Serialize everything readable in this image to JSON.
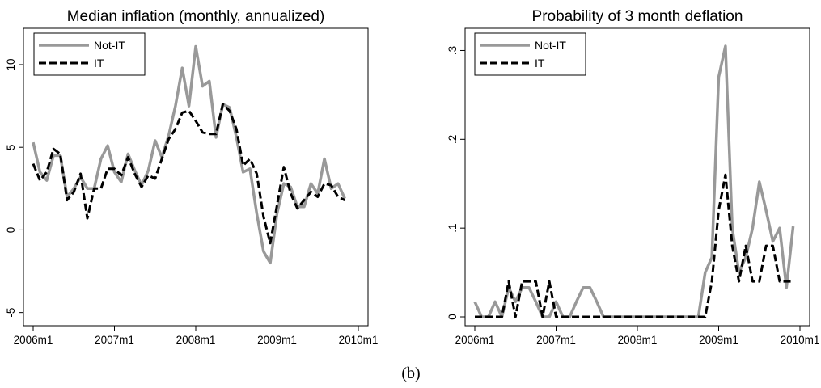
{
  "figure_label": "(b)",
  "chart_data": [
    {
      "type": "line",
      "title": "Median inflation (monthly, annualized)",
      "xlabel": "",
      "ylabel": "",
      "x_tick_labels": [
        "2006m1",
        "2007m1",
        "2008m1",
        "2009m1",
        "2010m1"
      ],
      "y_ticks": [
        -5,
        0,
        5,
        10
      ],
      "y_tick_labels": [
        "-5",
        "0",
        "5",
        "10"
      ],
      "xlim": [
        0,
        48
      ],
      "ylim": [
        -5.8,
        12.2
      ],
      "legend_position": "top-left",
      "grid": false,
      "series": [
        {
          "name": "Not-IT",
          "color": "#999999",
          "style": "solid",
          "values": [
            5.3,
            3.5,
            3.0,
            4.5,
            4.5,
            2.0,
            2.5,
            3.2,
            2.5,
            2.5,
            4.3,
            5.1,
            3.5,
            2.9,
            4.6,
            3.6,
            2.7,
            3.6,
            5.4,
            4.4,
            5.7,
            7.5,
            9.8,
            7.5,
            11.1,
            8.7,
            9.0,
            5.6,
            7.6,
            7.4,
            5.6,
            3.5,
            3.7,
            1.0,
            -1.3,
            -2.0,
            1.0,
            2.8,
            2.6,
            1.4,
            1.4,
            2.8,
            2.2,
            4.3,
            2.5,
            2.8,
            1.9
          ]
        },
        {
          "name": "IT",
          "color": "#000000",
          "style": "dashed",
          "values": [
            4.0,
            3.0,
            3.5,
            4.9,
            4.6,
            1.8,
            2.3,
            3.4,
            0.7,
            2.5,
            2.5,
            3.7,
            3.7,
            3.3,
            4.4,
            3.4,
            2.6,
            3.3,
            3.1,
            4.3,
            5.5,
            6.1,
            7.1,
            7.2,
            6.6,
            5.9,
            5.8,
            5.8,
            7.6,
            7.2,
            6.1,
            3.9,
            4.3,
            3.4,
            0.8,
            -0.8,
            1.5,
            3.8,
            2.2,
            1.3,
            1.8,
            2.3,
            2.0,
            2.8,
            2.7,
            2.0,
            1.8
          ]
        }
      ]
    },
    {
      "type": "line",
      "title": "Probability of 3 month deflation",
      "xlabel": "",
      "ylabel": "",
      "x_tick_labels": [
        "2006m1",
        "2007m1",
        "2008m1",
        "2009m1",
        "2010m1"
      ],
      "y_ticks": [
        0,
        0.1,
        0.2,
        0.3
      ],
      "y_tick_labels": [
        "0",
        ".1",
        ".2",
        ".3"
      ],
      "xlim": [
        0,
        48
      ],
      "ylim": [
        -0.01,
        0.325
      ],
      "legend_position": "top-left",
      "grid": false,
      "series": [
        {
          "name": "Not-IT",
          "color": "#999999",
          "style": "solid",
          "values": [
            0.017,
            0,
            0,
            0.017,
            0,
            0.033,
            0.017,
            0.033,
            0.033,
            0.017,
            0,
            0,
            0.017,
            0,
            0,
            0.017,
            0.033,
            0.033,
            0.017,
            0,
            0,
            0,
            0,
            0,
            0,
            0,
            0,
            0,
            0,
            0,
            0,
            0,
            0,
            0,
            0.05,
            0.067,
            0.27,
            0.305,
            0.1,
            0.05,
            0.067,
            0.1,
            0.152,
            0.12,
            0.085,
            0.1,
            0.033,
            0.102
          ]
        },
        {
          "name": "IT",
          "color": "#000000",
          "style": "dashed",
          "values": [
            0,
            0,
            0,
            0,
            0,
            0.04,
            0,
            0.04,
            0.04,
            0.04,
            0,
            0.04,
            0,
            0,
            0,
            0,
            0,
            0,
            0,
            0,
            0,
            0,
            0,
            0,
            0,
            0,
            0,
            0,
            0,
            0,
            0,
            0,
            0,
            0,
            0,
            0.04,
            0.12,
            0.16,
            0.08,
            0.04,
            0.08,
            0.04,
            0.04,
            0.08,
            0.08,
            0.04,
            0.04,
            0.04
          ]
        }
      ]
    }
  ]
}
